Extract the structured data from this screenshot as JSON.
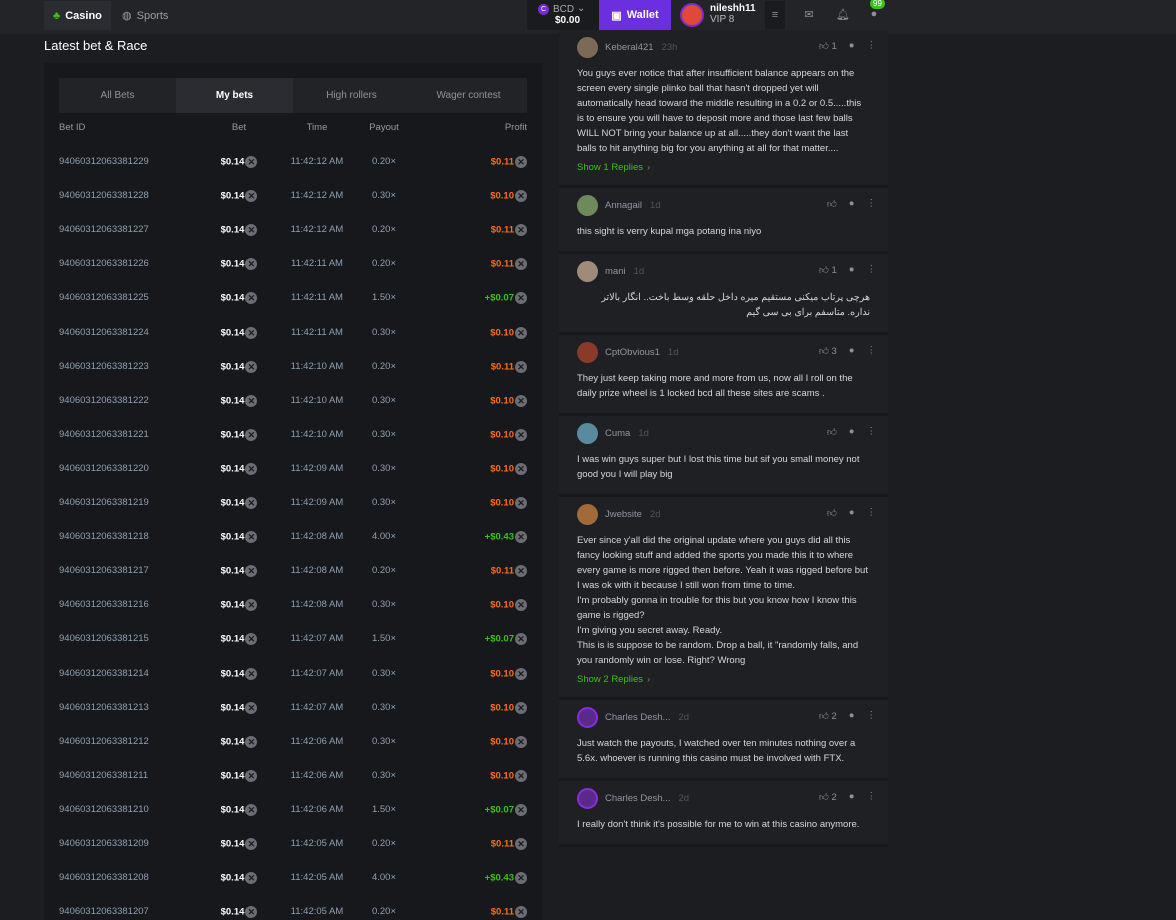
{
  "nav": {
    "casino": "Casino",
    "sports": "Sports",
    "currency": "BCD",
    "balance": "$0.00",
    "wallet": "Wallet",
    "username": "nileshh11",
    "vip": "VIP 8",
    "chat_badge": "99"
  },
  "section_title": "Latest bet & Race",
  "tabs": [
    "All Bets",
    "My bets",
    "High rollers",
    "Wager contest"
  ],
  "active_tab": "My bets",
  "columns": [
    "Bet ID",
    "Bet",
    "Time",
    "Payout",
    "Profit"
  ],
  "colors": {
    "accent": "#6c2fe0",
    "win": "#3bc117",
    "loss": "#ff6c17"
  },
  "bets": [
    [
      "94060312063381229",
      "$0.14",
      "11:42:12 AM",
      "0.20×",
      "$0.11"
    ],
    [
      "94060312063381228",
      "$0.14",
      "11:42:12 AM",
      "0.30×",
      "$0.10"
    ],
    [
      "94060312063381227",
      "$0.14",
      "11:42:12 AM",
      "0.20×",
      "$0.11"
    ],
    [
      "94060312063381226",
      "$0.14",
      "11:42:11 AM",
      "0.20×",
      "$0.11"
    ],
    [
      "94060312063381225",
      "$0.14",
      "11:42:11 AM",
      "1.50×",
      "+$0.07"
    ],
    [
      "94060312063381224",
      "$0.14",
      "11:42:11 AM",
      "0.30×",
      "$0.10"
    ],
    [
      "94060312063381223",
      "$0.14",
      "11:42:10 AM",
      "0.20×",
      "$0.11"
    ],
    [
      "94060312063381222",
      "$0.14",
      "11:42:10 AM",
      "0.30×",
      "$0.10"
    ],
    [
      "94060312063381221",
      "$0.14",
      "11:42:10 AM",
      "0.30×",
      "$0.10"
    ],
    [
      "94060312063381220",
      "$0.14",
      "11:42:09 AM",
      "0.30×",
      "$0.10"
    ],
    [
      "94060312063381219",
      "$0.14",
      "11:42:09 AM",
      "0.30×",
      "$0.10"
    ],
    [
      "94060312063381218",
      "$0.14",
      "11:42:08 AM",
      "4.00×",
      "+$0.43"
    ],
    [
      "94060312063381217",
      "$0.14",
      "11:42:08 AM",
      "0.20×",
      "$0.11"
    ],
    [
      "94060312063381216",
      "$0.14",
      "11:42:08 AM",
      "0.30×",
      "$0.10"
    ],
    [
      "94060312063381215",
      "$0.14",
      "11:42:07 AM",
      "1.50×",
      "+$0.07"
    ],
    [
      "94060312063381214",
      "$0.14",
      "11:42:07 AM",
      "0.30×",
      "$0.10"
    ],
    [
      "94060312063381213",
      "$0.14",
      "11:42:07 AM",
      "0.30×",
      "$0.10"
    ],
    [
      "94060312063381212",
      "$0.14",
      "11:42:06 AM",
      "0.30×",
      "$0.10"
    ],
    [
      "94060312063381211",
      "$0.14",
      "11:42:06 AM",
      "0.30×",
      "$0.10"
    ],
    [
      "94060312063381210",
      "$0.14",
      "11:42:06 AM",
      "1.50×",
      "+$0.07"
    ],
    [
      "94060312063381209",
      "$0.14",
      "11:42:05 AM",
      "0.20×",
      "$0.11"
    ],
    [
      "94060312063381208",
      "$0.14",
      "11:42:05 AM",
      "4.00×",
      "+$0.43"
    ],
    [
      "94060312063381207",
      "$0.14",
      "11:42:05 AM",
      "0.20×",
      "$0.11"
    ]
  ],
  "comments": [
    {
      "name": "Keberal421",
      "time": "23h",
      "likes": "1",
      "text": "You guys ever notice that after insufficient balance appears on the screen every single plinko ball that hasn't dropped yet will automatically head toward the middle resulting in a 0.2 or 0.5.....this is to ensure you will have to deposit more and those last few balls WILL NOT bring your balance up at all.....they don't want the last balls to hit anything big for you anything at all for that matter....",
      "replies": "Show 1 Replies"
    },
    {
      "name": "Annagail",
      "time": "1d",
      "likes": "",
      "text": "this sight is verry kupal mga potang ina niyo",
      "replies": ""
    },
    {
      "name": "mani",
      "time": "1d",
      "likes": "1",
      "text": "هرچی پرتاب میکنی مستقیم میره داخل حلقه وسط باخت.. انگار بالاتر نداره. متاسفم برای بی سی گیم",
      "replies": ""
    },
    {
      "name": "CptObvious1",
      "time": "1d",
      "likes": "3",
      "text": "They just keep taking more and more from us, now all I roll on the daily prize wheel is 1 locked bcd all these sites are scams .",
      "replies": ""
    },
    {
      "name": "Cuma",
      "time": "1d",
      "likes": "",
      "text": "I was win guys super but I lost this time but sif you small money not good you I will play big",
      "replies": ""
    },
    {
      "name": "Jwebsite",
      "time": "2d",
      "likes": "",
      "text": "Ever since y'all did the original update where you guys did all this fancy looking stuff and added the sports you made this it to where every game is more rigged then before. Yeah it was rigged before but I was ok with it because I still won from time to time.\nI'm probably gonna in trouble for this but you know how I know this game is rigged?\nI'm giving you secret away. Ready.\nThis is is suppose to be random. Drop a ball, it \"randomly falls, and you randomly win or lose. Right? Wrong",
      "replies": "Show 2 Replies"
    },
    {
      "name": "Charles Desh...",
      "time": "2d",
      "likes": "2",
      "text": "Just watch the payouts, I watched over ten minutes nothing over a 5.6x. whoever is running this casino must be involved with FTX.",
      "replies": ""
    },
    {
      "name": "Charles Desh...",
      "time": "2d",
      "likes": "2",
      "text": "I really don't think it's possible for me to win at this casino anymore.",
      "replies": ""
    }
  ]
}
